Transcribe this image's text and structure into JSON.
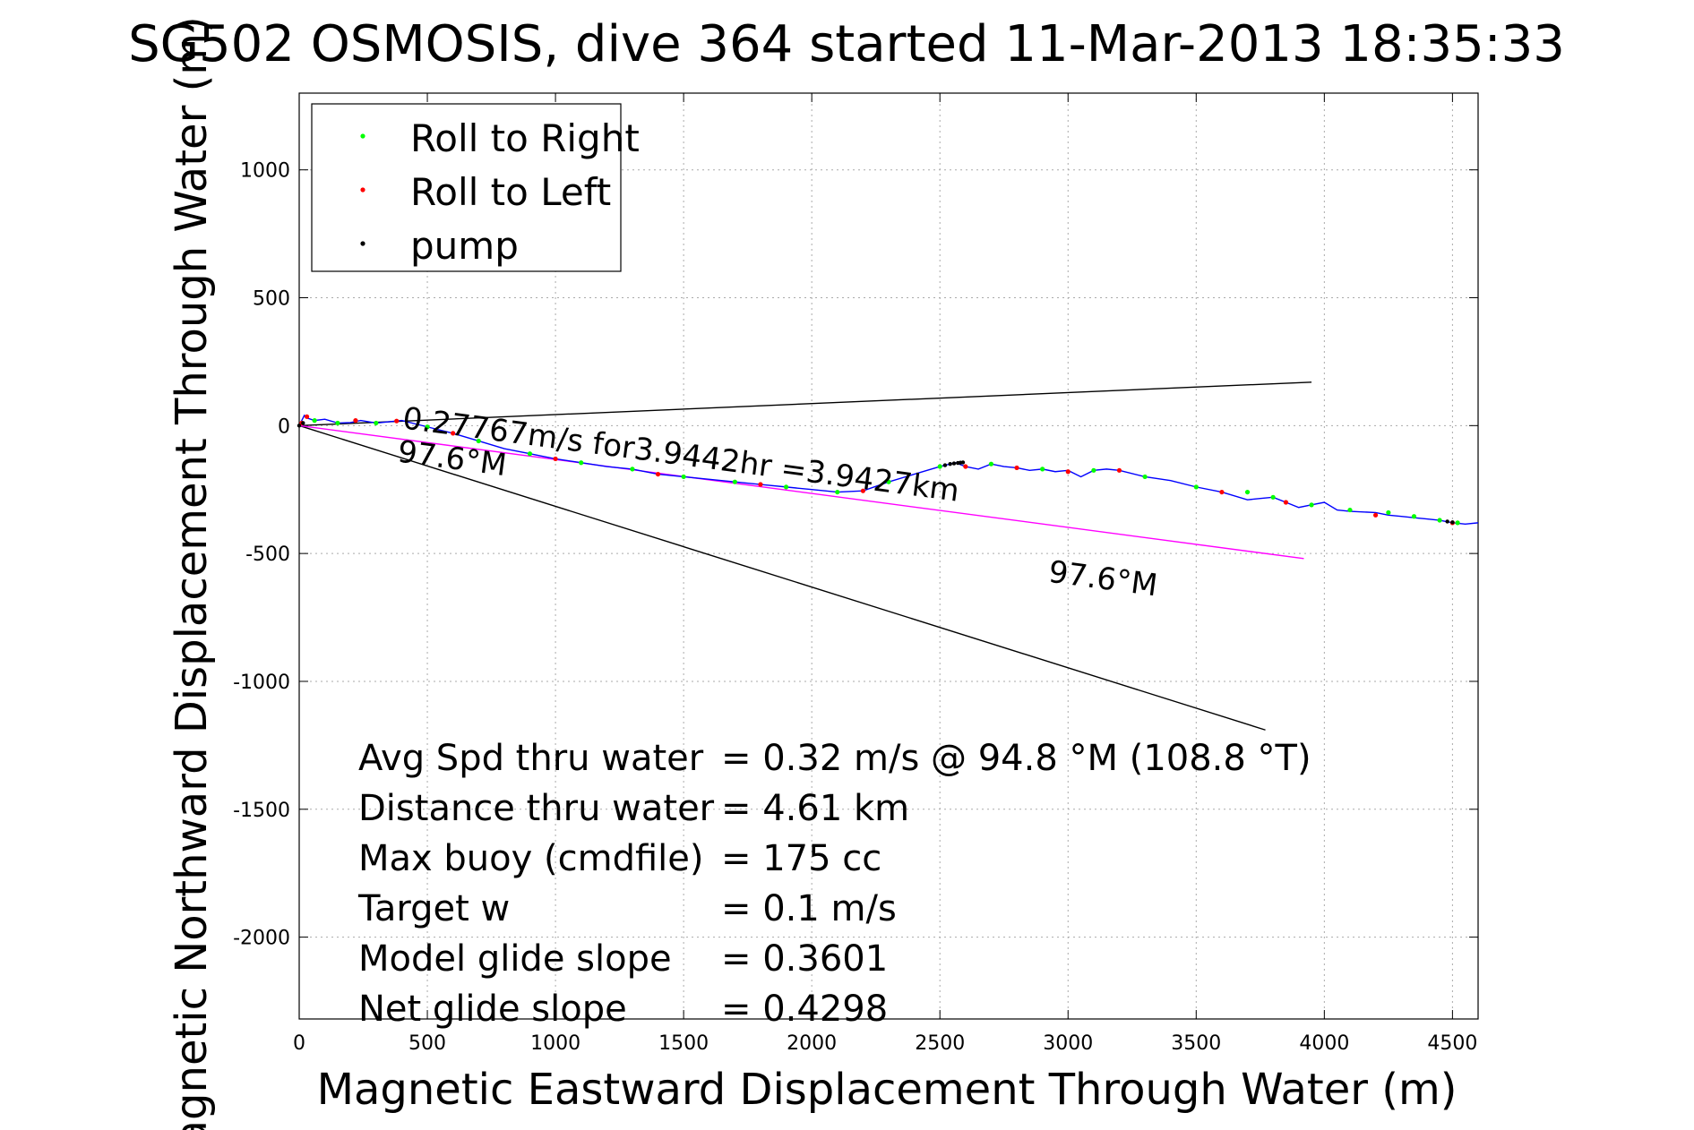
{
  "chart_data": {
    "type": "line",
    "title": "SG502 OSMOSIS, dive 364 started 11-Mar-2013 18:35:33",
    "xlabel": "Magnetic Eastward Displacement Through Water (m)",
    "ylabel": "Magnetic Northward Displacement Through Water (m)",
    "xlim": [
      0,
      4600
    ],
    "ylim": [
      -2320,
      1300
    ],
    "xticks": [
      0,
      500,
      1000,
      1500,
      2000,
      2500,
      3000,
      3500,
      4000,
      4500
    ],
    "yticks": [
      1000,
      500,
      0,
      -500,
      -1000,
      -1500,
      -2000
    ],
    "grid": true,
    "legend": {
      "placement": "top-left",
      "entries": [
        {
          "label": "Roll to Right",
          "color": "#00ff00"
        },
        {
          "label": "Roll to Left",
          "color": "#ff0000"
        },
        {
          "label": "pump",
          "color": "#000000"
        }
      ]
    },
    "series": [
      {
        "color": "#0000ff",
        "x": [
          0,
          20,
          30,
          60,
          100,
          150,
          200,
          240,
          300,
          350,
          400,
          500,
          600,
          700,
          800,
          900,
          1000,
          1100,
          1200,
          1300,
          1400,
          1500,
          1600,
          1700,
          1800,
          1900,
          2000,
          2100,
          2200,
          2300,
          2400,
          2500,
          2560,
          2600,
          2650,
          2700,
          2750,
          2800,
          2850,
          2900,
          2950,
          3000,
          3050,
          3100,
          3150,
          3200,
          3300,
          3400,
          3500,
          3600,
          3700,
          3750,
          3800,
          3850,
          3900,
          3950,
          4000,
          4050,
          4100,
          4200,
          4250,
          4300,
          4350,
          4400,
          4450,
          4500,
          4550,
          4600
        ],
        "y": [
          0,
          40,
          30,
          20,
          25,
          10,
          12,
          20,
          10,
          15,
          20,
          -5,
          -30,
          -60,
          -90,
          -110,
          -130,
          -145,
          -160,
          -170,
          -190,
          -200,
          -210,
          -220,
          -230,
          -240,
          -250,
          -260,
          -255,
          -220,
          -190,
          -160,
          -145,
          -160,
          -170,
          -150,
          -160,
          -165,
          -175,
          -170,
          -180,
          -175,
          -200,
          -175,
          -170,
          -175,
          -200,
          -215,
          -240,
          -260,
          -290,
          -285,
          -280,
          -300,
          -320,
          -310,
          -300,
          -330,
          -335,
          -340,
          -350,
          -355,
          -360,
          -365,
          -370,
          -380,
          -385,
          -380
        ]
      }
    ],
    "roll_right_points": {
      "x": [
        60,
        150,
        300,
        500,
        700,
        900,
        1100,
        1300,
        1500,
        1700,
        1900,
        2100,
        2300,
        2500,
        2700,
        2900,
        3100,
        3300,
        3500,
        3700,
        3800,
        3950,
        4100,
        4250,
        4350,
        4450,
        4520
      ],
      "y": [
        20,
        10,
        10,
        -5,
        -60,
        -110,
        -145,
        -170,
        -200,
        -220,
        -240,
        -260,
        -220,
        -160,
        -150,
        -170,
        -175,
        -200,
        -240,
        -260,
        -280,
        -310,
        -330,
        -340,
        -355,
        -370,
        -380
      ]
    },
    "roll_left_points": {
      "x": [
        10,
        30,
        220,
        380,
        600,
        1000,
        1400,
        1800,
        2200,
        2600,
        2800,
        3000,
        3200,
        3600,
        3850,
        4200,
        4500
      ],
      "y": [
        10,
        35,
        20,
        18,
        -30,
        -130,
        -190,
        -230,
        -255,
        -160,
        -165,
        -180,
        -175,
        -260,
        -300,
        -350,
        -380
      ]
    },
    "pump_points": {
      "x": [
        0,
        15,
        2520,
        2540,
        2555,
        2570,
        2580,
        2590,
        4480,
        4500
      ],
      "y": [
        0,
        10,
        -155,
        -150,
        -148,
        -146,
        -145,
        -144,
        -375,
        -378
      ]
    },
    "reference_lines": [
      {
        "color": "#000000",
        "x": [
          0,
          3950
        ],
        "y": [
          0,
          170
        ]
      },
      {
        "color": "#000000",
        "x": [
          0,
          3770
        ],
        "y": [
          0,
          -1190
        ]
      },
      {
        "color": "#ff00ff",
        "x": [
          0,
          3920
        ],
        "y": [
          0,
          -520
        ]
      }
    ],
    "annotations": [
      {
        "text": "0.27767m/s for3.9442hr =3.9427km",
        "x": 400,
        "y": -10,
        "rotate_deg": 7.5
      },
      {
        "text": "97.6°M",
        "x": 380,
        "y": -140,
        "rotate_deg": 7.5
      },
      {
        "text": "97.6°M",
        "x": 2920,
        "y": -610,
        "rotate_deg": 7.5
      }
    ],
    "stats": [
      {
        "label": "Avg Spd thru water",
        "value": "=  0.32 m/s @  94.8 °M (108.8 °T)"
      },
      {
        "label": "Distance thru water",
        "value": "=  4.61 km"
      },
      {
        "label": "Max buoy (cmdfile)",
        "value": "= 175 cc"
      },
      {
        "label": "Target w",
        "value": "= 0.1 m/s"
      },
      {
        "label": "Model glide slope",
        "value": "= 0.3601"
      },
      {
        "label": "Net glide slope",
        "value": "= 0.4298"
      }
    ]
  }
}
